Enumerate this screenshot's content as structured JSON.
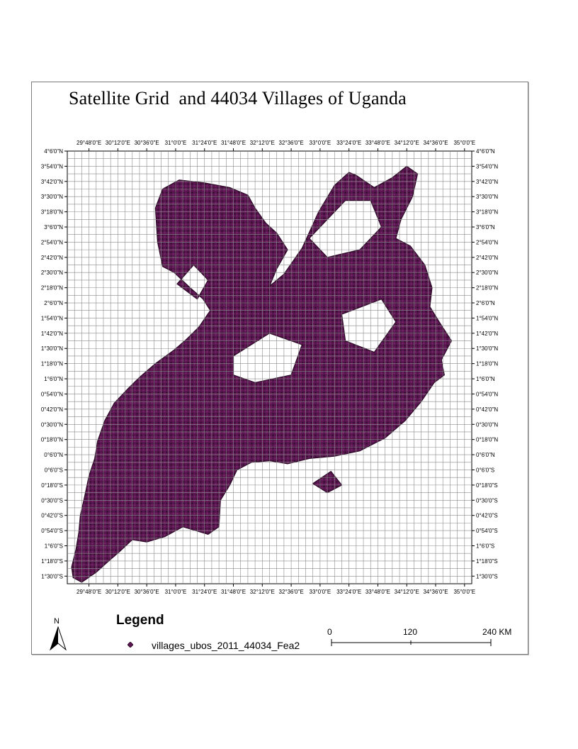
{
  "title": "Satellite Grid  and 44034 Villages of Uganda",
  "map": {
    "extent": {
      "lon_min": 29.5,
      "lon_max": 35.1,
      "lat_min": -1.6,
      "lat_max": 4.1
    },
    "grid_step_deg": 0.1,
    "labeled_lon_step_deg": 0.4,
    "labeled_lat_step_deg": 0.2,
    "colors": {
      "frame": "#7a7a7a",
      "grid": "#8a8a8a",
      "villages_fill": "#5a1650",
      "villages_edge": "#2b0a26",
      "villages_dense": "#2a0a24",
      "background": "#ffffff"
    },
    "lon_labels": [
      "29°48'0\"E",
      "30°12'0\"E",
      "30°36'0\"E",
      "31°0'0\"E",
      "31°24'0\"E",
      "31°48'0\"E",
      "32°12'0\"E",
      "32°36'0\"E",
      "33°0'0\"E",
      "33°24'0\"E",
      "33°48'0\"E",
      "34°12'0\"E",
      "34°36'0\"E",
      "35°0'0\"E"
    ],
    "lat_labels": [
      "4°6'0\"N",
      "3°54'0\"N",
      "3°42'0\"N",
      "3°30'0\"N",
      "3°18'0\"N",
      "3°6'0\"N",
      "2°54'0\"N",
      "2°42'0\"N",
      "2°30'0\"N",
      "2°18'0\"N",
      "2°6'0\"N",
      "1°54'0\"N",
      "1°42'0\"N",
      "1°30'0\"N",
      "1°18'0\"N",
      "1°6'0\"N",
      "0°54'0\"N",
      "0°42'0\"N",
      "0°30'0\"N",
      "0°18'0\"N",
      "0°6'0\"N",
      "0°6'0\"S",
      "0°18'0\"S",
      "0°30'0\"S",
      "0°42'0\"S",
      "0°54'0\"S",
      "1°6'0\"S",
      "1°18'0\"S",
      "1°30'0\"S"
    ],
    "villages_shape_lonlat": [
      [
        29.56,
        -1.38
      ],
      [
        29.62,
        -1.15
      ],
      [
        29.66,
        -0.92
      ],
      [
        29.68,
        -0.7
      ],
      [
        29.74,
        -0.45
      ],
      [
        29.8,
        -0.18
      ],
      [
        29.88,
        0.05
      ],
      [
        29.92,
        0.28
      ],
      [
        30.02,
        0.55
      ],
      [
        30.15,
        0.78
      ],
      [
        30.35,
        0.98
      ],
      [
        30.5,
        1.12
      ],
      [
        30.72,
        1.3
      ],
      [
        30.98,
        1.48
      ],
      [
        31.15,
        1.62
      ],
      [
        31.32,
        1.78
      ],
      [
        31.48,
        2.0
      ],
      [
        31.38,
        2.15
      ],
      [
        31.2,
        2.3
      ],
      [
        30.98,
        2.5
      ],
      [
        30.82,
        2.58
      ],
      [
        30.75,
        2.9
      ],
      [
        30.72,
        3.35
      ],
      [
        30.82,
        3.6
      ],
      [
        31.05,
        3.72
      ],
      [
        31.4,
        3.68
      ],
      [
        31.75,
        3.62
      ],
      [
        32.0,
        3.52
      ],
      [
        32.1,
        3.35
      ],
      [
        32.25,
        3.15
      ],
      [
        32.4,
        3.02
      ],
      [
        32.55,
        2.8
      ],
      [
        32.4,
        2.55
      ],
      [
        32.3,
        2.32
      ],
      [
        32.5,
        2.48
      ],
      [
        32.75,
        2.82
      ],
      [
        32.98,
        3.3
      ],
      [
        33.2,
        3.65
      ],
      [
        33.4,
        3.82
      ],
      [
        33.5,
        3.78
      ],
      [
        33.75,
        3.62
      ],
      [
        34.0,
        3.75
      ],
      [
        34.2,
        3.9
      ],
      [
        34.35,
        3.8
      ],
      [
        34.28,
        3.5
      ],
      [
        34.12,
        3.2
      ],
      [
        34.05,
        2.95
      ],
      [
        34.25,
        2.85
      ],
      [
        34.45,
        2.6
      ],
      [
        34.55,
        2.3
      ],
      [
        34.52,
        2.05
      ],
      [
        34.65,
        1.85
      ],
      [
        34.82,
        1.6
      ],
      [
        34.68,
        1.35
      ],
      [
        34.72,
        1.15
      ],
      [
        34.58,
        1.05
      ],
      [
        34.4,
        0.8
      ],
      [
        34.18,
        0.55
      ],
      [
        33.9,
        0.32
      ],
      [
        33.55,
        0.15
      ],
      [
        33.2,
        0.08
      ],
      [
        32.85,
        0.05
      ],
      [
        32.55,
        -0.02
      ],
      [
        32.3,
        0.02
      ],
      [
        32.05,
        0.0
      ],
      [
        31.85,
        -0.1
      ],
      [
        31.75,
        -0.3
      ],
      [
        31.62,
        -0.5
      ],
      [
        31.6,
        -0.85
      ],
      [
        31.45,
        -0.95
      ],
      [
        31.1,
        -0.85
      ],
      [
        30.85,
        -0.98
      ],
      [
        30.6,
        -1.05
      ],
      [
        30.4,
        -1.02
      ],
      [
        30.22,
        -1.18
      ],
      [
        30.05,
        -1.32
      ],
      [
        29.9,
        -1.45
      ],
      [
        29.7,
        -1.58
      ],
      [
        29.58,
        -1.52
      ]
    ],
    "villages_holes_lonlat": [
      [
        [
          32.85,
          2.95
        ],
        [
          33.35,
          3.45
        ],
        [
          33.7,
          3.45
        ],
        [
          33.85,
          3.1
        ],
        [
          33.55,
          2.8
        ],
        [
          33.1,
          2.7
        ]
      ],
      [
        [
          31.8,
          1.4
        ],
        [
          32.3,
          1.7
        ],
        [
          32.75,
          1.55
        ],
        [
          32.6,
          1.15
        ],
        [
          32.1,
          1.05
        ],
        [
          31.8,
          1.15
        ]
      ],
      [
        [
          33.3,
          1.95
        ],
        [
          33.85,
          2.15
        ],
        [
          34.05,
          1.85
        ],
        [
          33.75,
          1.45
        ],
        [
          33.35,
          1.6
        ]
      ],
      [
        [
          31.02,
          2.35
        ],
        [
          31.25,
          2.6
        ],
        [
          31.45,
          2.4
        ],
        [
          31.3,
          2.15
        ]
      ],
      [
        [
          32.9,
          -0.28
        ],
        [
          33.1,
          -0.4
        ],
        [
          33.3,
          -0.3
        ],
        [
          33.15,
          -0.12
        ]
      ]
    ]
  },
  "legend": {
    "title": "Legend",
    "item_label": "villages_ubos_2011_44034_Fea2",
    "symbol_color": "#5a1650"
  },
  "north": {
    "label": "N"
  },
  "scale": {
    "labels": [
      "0",
      "120",
      "240 KM"
    ],
    "ticks_km": [
      0,
      120,
      240
    ]
  }
}
